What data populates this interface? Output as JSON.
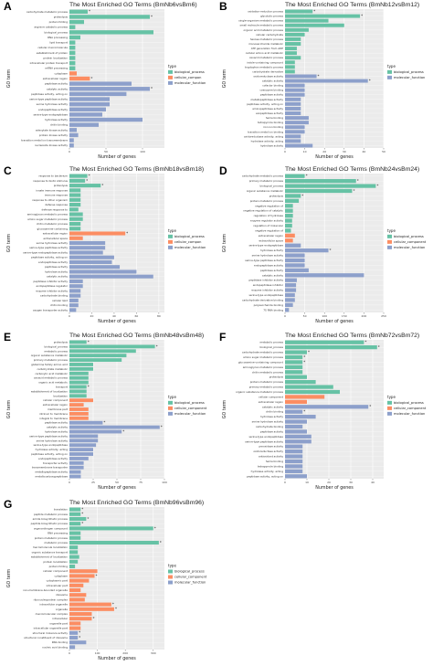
{
  "figure": {
    "type_label": "type",
    "y_axis_label": "GO term",
    "x_axis_label": "Number of genes"
  },
  "colors": {
    "biological_process": "#66c2a5",
    "cellular_component": "#fc8d62",
    "molecular_function": "#8da0cb",
    "panel_bg": "#ebebeb",
    "grid": "#ffffff"
  },
  "chart_data": [
    {
      "type": "bar",
      "letter": "A",
      "title": "The Most Enriched GO Terms (BmNb6vsBm6)",
      "xlabel": "Number of genes",
      "ylabel": "GO term",
      "xlim": [
        0,
        130
      ],
      "xticks": [
        0,
        50,
        100
      ],
      "categories": [
        "carbohydrate metabolic process",
        "proteolysis",
        "protein folding",
        "arginine catabolic process",
        "biological_process",
        "RNA processing",
        "lipid transport",
        "cellular macromolecule",
        "establishment of protein",
        "protein localization",
        "intracellular protein transport",
        "mRNA processing",
        "cytoplasm",
        "extracellular region",
        "peptidase activity",
        "catalytic activity",
        "peptidase activity, acting on",
        "serine-type peptidase activity",
        "serine hydrolase activity",
        "endopeptidase activity",
        "serine-type endopeptidase",
        "hydrolase activity",
        "chitin binding",
        "adenylate kinase activity",
        "protein kinase activity",
        "transition metal ion transmembrane",
        "nucleoside kinase activity"
      ],
      "values": [
        25,
        110,
        20,
        8,
        115,
        15,
        8,
        8,
        8,
        8,
        8,
        8,
        10,
        28,
        85,
        110,
        78,
        55,
        55,
        50,
        45,
        100,
        40,
        10,
        12,
        6,
        6
      ],
      "types": [
        "bp",
        "bp",
        "bp",
        "bp",
        "bp",
        "bp",
        "bp",
        "bp",
        "bp",
        "bp",
        "bp",
        "bp",
        "cc",
        "cc",
        "mf",
        "mf",
        "mf",
        "mf",
        "mf",
        "mf",
        "mf",
        "mf",
        "mf",
        "mf",
        "mf",
        "mf",
        "mf"
      ],
      "stars": [
        1,
        1,
        0,
        0,
        0,
        0,
        0,
        0,
        0,
        0,
        0,
        0,
        0,
        1,
        0,
        1,
        0,
        0,
        0,
        0,
        0,
        0,
        0,
        0,
        0,
        0,
        0
      ],
      "legend": [
        "biological_process",
        "cellular_compon",
        "molecular_function"
      ],
      "legend_keys": [
        "biological_process",
        "cellular_component",
        "molecular_function"
      ]
    },
    {
      "type": "bar",
      "letter": "B",
      "title": "The Most Enriched GO Terms (BmNb12vsBm12)",
      "xlabel": "Number of genes",
      "ylabel": "GO term",
      "xlim": [
        0,
        50
      ],
      "xticks": [
        0,
        10,
        20,
        30,
        40,
        50
      ],
      "categories": [
        "oxidation-reduction process",
        "glycolytic process",
        "single-organism metabolic process",
        "small molecule metabolic process",
        "organic acid metabolic process",
        "cellular carbohydrate",
        "hexose metabolic process",
        "monosaccharide metabolic",
        "ATP generation from ADP",
        "cellular amino acid metabolic",
        "oxoacid metabolic process",
        "indole-containing compound",
        "tryptophan metabolic process",
        "carbohydrate derivative",
        "oxidoreductase activity",
        "catalytic activity",
        "cofactor binding",
        "coenzyme binding",
        "peptidase activity",
        "metallopeptidase activity",
        "peptidase activity, acting on",
        "aminopeptidase activity",
        "exopeptidase activity",
        "heme binding",
        "tetrapyrrole binding",
        "iron ion binding",
        "transition metal ion binding",
        "oxidoreductase activity, acting",
        "hydrolase activity, acting",
        "hydrolase activity"
      ],
      "values": [
        14,
        38,
        22,
        30,
        12,
        10,
        8,
        8,
        6,
        6,
        8,
        5,
        5,
        5,
        16,
        42,
        10,
        10,
        10,
        8,
        8,
        8,
        8,
        12,
        12,
        10,
        10,
        8,
        8,
        14
      ],
      "types": [
        "bp",
        "bp",
        "bp",
        "bp",
        "bp",
        "bp",
        "bp",
        "bp",
        "bp",
        "bp",
        "bp",
        "bp",
        "bp",
        "bp",
        "mf",
        "mf",
        "mf",
        "mf",
        "mf",
        "mf",
        "mf",
        "mf",
        "mf",
        "mf",
        "mf",
        "mf",
        "mf",
        "mf",
        "mf",
        "mf"
      ],
      "stars": [
        1,
        1,
        0,
        0,
        0,
        0,
        0,
        0,
        0,
        0,
        0,
        0,
        0,
        0,
        1,
        1,
        0,
        0,
        0,
        0,
        0,
        0,
        0,
        0,
        0,
        0,
        0,
        0,
        0,
        0
      ],
      "legend": [
        "biological_process",
        "molecular_function"
      ],
      "legend_keys": [
        "biological_process",
        "molecular_function"
      ]
    },
    {
      "type": "bar",
      "letter": "C",
      "title": "The Most Enriched GO Terms (BmNb18vsBm18)",
      "xlabel": "Number of genes",
      "ylabel": "GO term",
      "xlim": [
        0,
        85
      ],
      "xticks": [
        0,
        20,
        40,
        60,
        80
      ],
      "categories": [
        "response to bacterium",
        "response to biotic stimulus",
        "proteolysis",
        "innate immune response",
        "immune response",
        "response to other organism",
        "defense response",
        "defense response to",
        "aminoglycan metabolic process",
        "amino sugar metabolic process",
        "chitin metabolic process",
        "glucosamine-containing",
        "extracellular region",
        "extracellular space",
        "serine hydrolase activity",
        "serine-type peptidase activity",
        "serine-type endopeptidase activity",
        "peptidase activity, acting on",
        "endopeptidase activity",
        "peptidase activity",
        "hydrolase activity",
        "catalytic activity",
        "peptidase inhibitor activity",
        "endopeptidase regulator",
        "enzyme inhibitor activity",
        "carbohydrate binding",
        "cellular lipid",
        "chitin binding",
        "oxygen transporter activity"
      ],
      "values": [
        16,
        14,
        28,
        10,
        10,
        10,
        10,
        8,
        12,
        12,
        10,
        10,
        50,
        12,
        32,
        32,
        30,
        40,
        38,
        45,
        60,
        75,
        12,
        12,
        10,
        10,
        8,
        8,
        6
      ],
      "types": [
        "bp",
        "bp",
        "bp",
        "bp",
        "bp",
        "bp",
        "bp",
        "bp",
        "bp",
        "bp",
        "bp",
        "bp",
        "cc",
        "cc",
        "mf",
        "mf",
        "mf",
        "mf",
        "mf",
        "mf",
        "mf",
        "mf",
        "mf",
        "mf",
        "mf",
        "mf",
        "mf",
        "mf",
        "mf"
      ],
      "stars": [
        1,
        1,
        1,
        0,
        0,
        0,
        0,
        0,
        0,
        0,
        0,
        0,
        1,
        0,
        0,
        0,
        0,
        0,
        0,
        0,
        0,
        0,
        0,
        0,
        0,
        0,
        0,
        0,
        0
      ],
      "legend": [
        "biological_process",
        "cellular_compon",
        "molecular_function"
      ],
      "legend_keys": [
        "biological_process",
        "cellular_component",
        "molecular_function"
      ]
    },
    {
      "type": "bar",
      "letter": "D",
      "title": "The Most Enriched GO Terms (BmNb24vsBm24)",
      "xlabel": "Number of genes",
      "ylabel": "GO term",
      "xlim": [
        0,
        250
      ],
      "xticks": [
        0,
        50,
        100,
        150,
        200,
        250
      ],
      "categories": [
        "carbohydrate metabolic process",
        "primary metabolic process",
        "biological_process",
        "organic substance metabolic",
        "proteolysis",
        "protein metabolic process",
        "negative regulation of",
        "negative regulation of catalytic",
        "regulation of hydrolase",
        "enzyme regulator activity",
        "regulation of molecular",
        "negative regulation of",
        "extracellular region",
        "extracellular space",
        "serine-type endopeptidase",
        "hydrolase activity",
        "serine hydrolase activity",
        "serine-type peptidase activity",
        "endopeptidase activity",
        "peptidase activity",
        "catalytic activity",
        "peptidase inhibitor activity",
        "endopeptidase inhibitor",
        "enzyme inhibitor activity",
        "serine-type endopeptidase",
        "carbohydrate derivative binding",
        "polysaccharide binding",
        "7S RNA binding"
      ],
      "values": [
        50,
        180,
        230,
        170,
        40,
        35,
        20,
        20,
        20,
        18,
        18,
        15,
        25,
        20,
        40,
        110,
        50,
        50,
        50,
        60,
        200,
        30,
        28,
        28,
        25,
        25,
        20,
        10
      ],
      "types": [
        "bp",
        "bp",
        "bp",
        "bp",
        "bp",
        "bp",
        "bp",
        "bp",
        "bp",
        "bp",
        "bp",
        "bp",
        "cc",
        "cc",
        "mf",
        "mf",
        "mf",
        "mf",
        "mf",
        "mf",
        "mf",
        "mf",
        "mf",
        "mf",
        "mf",
        "mf",
        "mf",
        "mf"
      ],
      "stars": [
        1,
        1,
        1,
        1,
        1,
        0,
        0,
        0,
        0,
        0,
        0,
        0,
        0,
        0,
        0,
        1,
        0,
        0,
        0,
        0,
        0,
        0,
        0,
        0,
        0,
        0,
        0,
        0
      ],
      "legend": [
        "biological_process",
        "cellular_component",
        "molecular_function"
      ],
      "legend_keys": [
        "biological_process",
        "cellular_component",
        "molecular_function"
      ]
    },
    {
      "type": "bar",
      "letter": "E",
      "title": "The Most Enriched GO Terms (BmNb48vsBm48)",
      "xlabel": "Number of genes",
      "ylabel": "GO term",
      "xlim": [
        0,
        100
      ],
      "xticks": [
        0,
        25,
        50,
        75,
        100
      ],
      "categories": [
        "proteolysis",
        "biological_process",
        "metabolic process",
        "organic substance metabolic",
        "primary metabolic process",
        "glutamine family amino acid",
        "carbohydrate metabolic",
        "carboxylic acid metabolic",
        "oxoacid metabolic process",
        "organic acid metabolic",
        "transport",
        "establishment of localization",
        "localization",
        "cellular component",
        "extracellular region",
        "membrane part",
        "intrinsic to membrane",
        "integral to membrane",
        "peptidase activity",
        "catalytic activity",
        "hydrolase activity",
        "serine-type peptidase activity",
        "serine hydrolase activity",
        "serine-type endopeptidase",
        "hydrolase activity, acting",
        "peptidase activity, acting on",
        "endopeptidase activity",
        "transporter activity",
        "transmembrane transporter",
        "metallopeptidase activity",
        "metallocarboxypeptidase"
      ],
      "values": [
        18,
        90,
        70,
        60,
        55,
        25,
        25,
        20,
        20,
        20,
        18,
        18,
        18,
        25,
        15,
        20,
        20,
        20,
        35,
        95,
        55,
        30,
        30,
        28,
        25,
        25,
        20,
        15,
        15,
        12,
        12
      ],
      "types": [
        "bp",
        "bp",
        "bp",
        "bp",
        "bp",
        "bp",
        "bp",
        "bp",
        "bp",
        "bp",
        "bp",
        "bp",
        "bp",
        "cc",
        "cc",
        "cc",
        "cc",
        "cc",
        "mf",
        "mf",
        "mf",
        "mf",
        "mf",
        "mf",
        "mf",
        "mf",
        "mf",
        "mf",
        "mf",
        "mf",
        "mf"
      ],
      "stars": [
        1,
        1,
        0,
        0,
        0,
        0,
        0,
        0,
        0,
        0,
        1,
        0,
        0,
        0,
        0,
        0,
        0,
        0,
        1,
        1,
        1,
        0,
        0,
        0,
        0,
        0,
        0,
        0,
        0,
        0,
        0
      ],
      "legend": [
        "biological_process",
        "cellular_component",
        "molecular_function"
      ],
      "legend_keys": [
        "biological_process",
        "cellular_component",
        "molecular_function"
      ]
    },
    {
      "type": "bar",
      "letter": "F",
      "title": "The Most Enriched GO Terms (BmNb72vsBm72)",
      "xlabel": "Number of genes",
      "ylabel": "GO term",
      "xlim": [
        0,
        45
      ],
      "xticks": [
        0,
        10,
        20,
        30,
        40
      ],
      "categories": [
        "metabolic process",
        "biological_process",
        "carbohydrate metabolic process",
        "amino sugar metabolic process",
        "glucosamine-containing compound",
        "aminoglycan metabolic process",
        "chitin metabolic process",
        "proteolysis",
        "protein metabolic process",
        "primary metabolic process",
        "organic substance metabolic process",
        "cellular component",
        "extracellular region",
        "catalytic activity",
        "chitin binding",
        "hydrolase activity",
        "serine hydrolase activity",
        "carbohydrate binding",
        "peptidase activity",
        "serine-type endopeptidase",
        "serine-type peptidase activity",
        "peroxidase activity",
        "oxidoreductase activity",
        "antioxidant activity",
        "heme binding",
        "tetrapyrrole binding",
        "hydrolase activity, acting",
        "peptidase activity, acting on"
      ],
      "values": [
        36,
        42,
        10,
        8,
        8,
        8,
        8,
        10,
        14,
        22,
        25,
        18,
        10,
        38,
        8,
        14,
        10,
        8,
        10,
        12,
        12,
        8,
        8,
        8,
        8,
        8,
        8,
        10
      ],
      "types": [
        "bp",
        "bp",
        "bp",
        "bp",
        "bp",
        "bp",
        "bp",
        "bp",
        "bp",
        "bp",
        "bp",
        "cc",
        "cc",
        "mf",
        "mf",
        "mf",
        "mf",
        "mf",
        "mf",
        "mf",
        "mf",
        "mf",
        "mf",
        "mf",
        "mf",
        "mf",
        "mf",
        "mf"
      ],
      "stars": [
        1,
        1,
        1,
        1,
        1,
        0,
        0,
        0,
        0,
        0,
        0,
        0,
        0,
        1,
        1,
        0,
        0,
        0,
        0,
        0,
        0,
        0,
        0,
        0,
        0,
        0,
        0,
        0
      ],
      "legend": [
        "biological_process",
        "cellular_component",
        "molecular_function"
      ],
      "legend_keys": [
        "biological_process",
        "cellular_component",
        "molecular_function"
      ]
    },
    {
      "type": "bar",
      "letter": "G",
      "title": "The Most Enriched GO Terms (BmNb96vsBm96)",
      "xlabel": "Number of genes",
      "ylabel": "GO term",
      "xlim": [
        0,
        340
      ],
      "xticks": [
        0,
        100,
        200,
        300
      ],
      "categories": [
        "translation",
        "peptide metabolic process",
        "amide biosynthetic process",
        "peptide biosynthetic process",
        "organonitrogen compound",
        "RNA processing",
        "protein metabolic process",
        "metabolic process",
        "macromolecule localization",
        "organic substance transport",
        "establishment of localization",
        "protein localization",
        "protein folding",
        "cellular component",
        "cytoplasm",
        "cytoplasmic part",
        "intracellular part",
        "non-membrane-bounded organelle",
        "ribosome",
        "ribonucleoprotein complex",
        "intracellular organelle",
        "organelle",
        "macromolecular complex",
        "intracellular",
        "organelle part",
        "intracellular organelle part",
        "structural molecule activity",
        "structural constituent of ribosome",
        "RNA binding",
        "nucleic acid binding"
      ],
      "values": [
        40,
        40,
        60,
        40,
        300,
        40,
        40,
        320,
        30,
        30,
        35,
        30,
        20,
        100,
        90,
        70,
        50,
        40,
        60,
        55,
        150,
        160,
        80,
        80,
        40,
        40,
        30,
        30,
        60,
        20
      ],
      "types": [
        "bp",
        "bp",
        "bp",
        "bp",
        "bp",
        "bp",
        "bp",
        "bp",
        "bp",
        "bp",
        "bp",
        "bp",
        "bp",
        "cc",
        "cc",
        "cc",
        "cc",
        "cc",
        "cc",
        "cc",
        "cc",
        "cc",
        "cc",
        "cc",
        "cc",
        "cc",
        "mf",
        "mf",
        "mf",
        "mf"
      ],
      "stars": [
        1,
        1,
        1,
        1,
        1,
        0,
        0,
        1,
        0,
        0,
        0,
        0,
        0,
        0,
        1,
        0,
        0,
        0,
        0,
        0,
        1,
        1,
        0,
        1,
        0,
        0,
        1,
        1,
        0,
        0
      ],
      "legend": [
        "biological_process",
        "cellular_component",
        "molecular_function"
      ],
      "legend_keys": [
        "biological_process",
        "cellular_component",
        "molecular_function"
      ]
    }
  ]
}
